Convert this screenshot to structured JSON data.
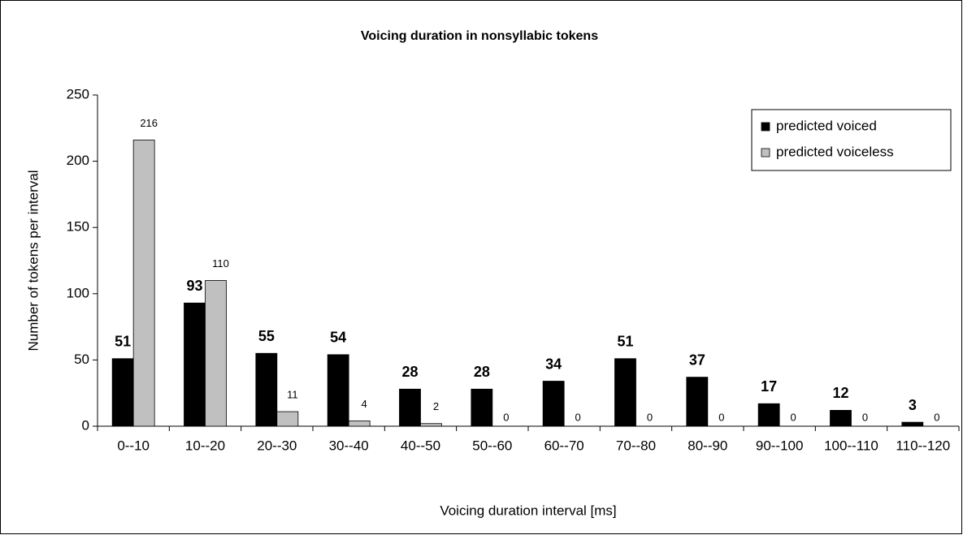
{
  "chart_data": {
    "type": "bar",
    "title": "Voicing duration in nonsyllabic tokens",
    "x_label": "Voicing duration interval  [ms]",
    "y_label": "Number of tokens per interval",
    "categories": [
      "0--10",
      "10--20",
      "20--30",
      "30--40",
      "40--50",
      "50--60",
      "60--70",
      "70--80",
      "80--90",
      "90--100",
      "100--110",
      "110--120"
    ],
    "series": [
      {
        "name": "predicted voiced",
        "color": "#000000",
        "values": [
          51,
          93,
          55,
          54,
          28,
          28,
          34,
          51,
          37,
          17,
          12,
          3
        ]
      },
      {
        "name": "predicted voiceless",
        "color": "#c0c0c0",
        "values": [
          216,
          110,
          11,
          4,
          2,
          0,
          0,
          0,
          0,
          0,
          0,
          0
        ]
      }
    ],
    "ylim": [
      0,
      250
    ],
    "yticks": [
      0,
      50,
      100,
      150,
      200,
      250
    ],
    "grid": false,
    "legend": "top-right"
  }
}
